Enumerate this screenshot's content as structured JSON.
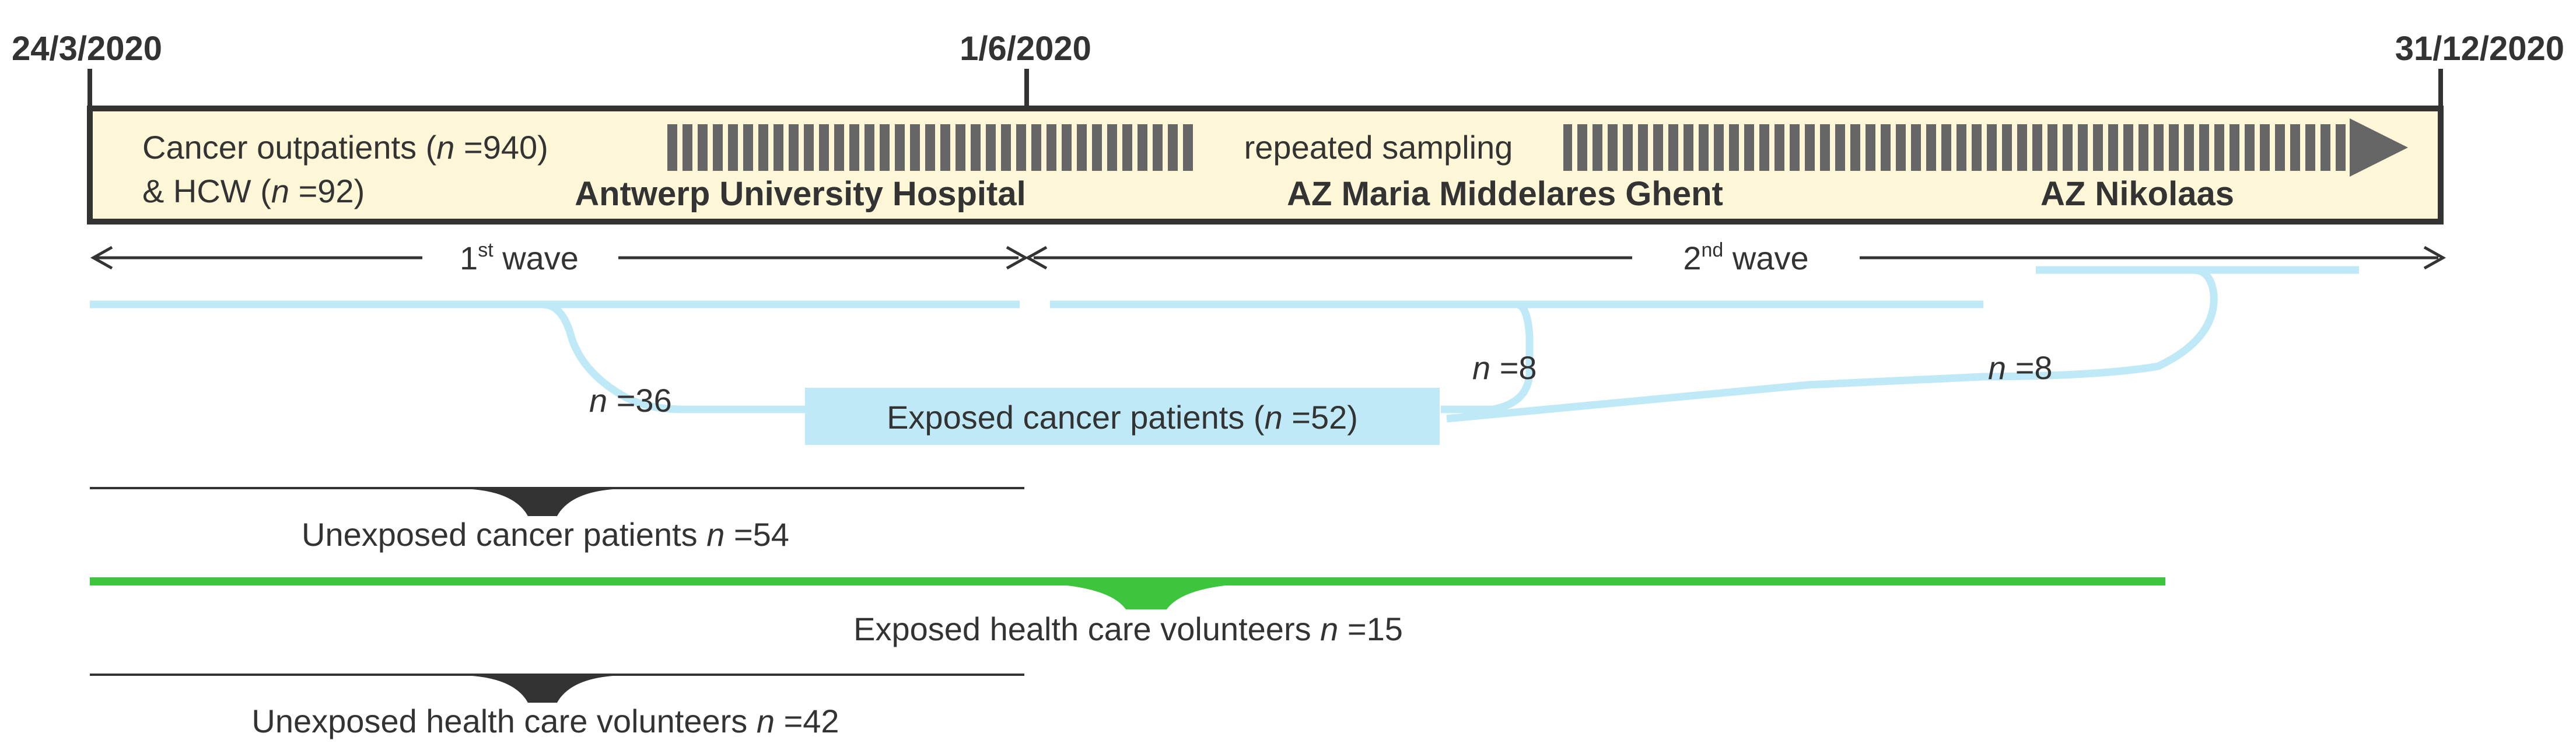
{
  "dates": {
    "start": "24/3/2020",
    "mid": "1/6/2020",
    "end": "31/12/2020"
  },
  "cohort": {
    "line1_prefix": "Cancer outpatients (",
    "n_var": "n",
    "line1_value": " =940)",
    "line2_prefix": "& HCW (",
    "line2_value": " =92)",
    "sampling": "repeated sampling"
  },
  "hospitals": [
    "Antwerp University Hospital",
    "AZ Maria Middelares Ghent",
    "AZ Nikolaas"
  ],
  "waves": {
    "first": {
      "num": "1",
      "suffix": "st",
      "word": " wave"
    },
    "second": {
      "num": "2",
      "suffix": "nd",
      "word": " wave"
    }
  },
  "exposed_patients": {
    "label_prefix": "Exposed cancer patients (",
    "label_value": " =52)",
    "counts": [
      " =36",
      " =8",
      " =8"
    ]
  },
  "groups": [
    {
      "label": "Unexposed cancer patients ",
      "value": " =54"
    },
    {
      "label": "Exposed health care volunteers ",
      "value": " =15"
    },
    {
      "label": "Unexposed health care volunteers ",
      "value": " =42"
    }
  ],
  "colors": {
    "light_blue": "#bfe9f6",
    "green": "#3dc63d",
    "box_fill": "#fdf6d7",
    "dark": "#333333",
    "arrow_gray": "#666666"
  }
}
